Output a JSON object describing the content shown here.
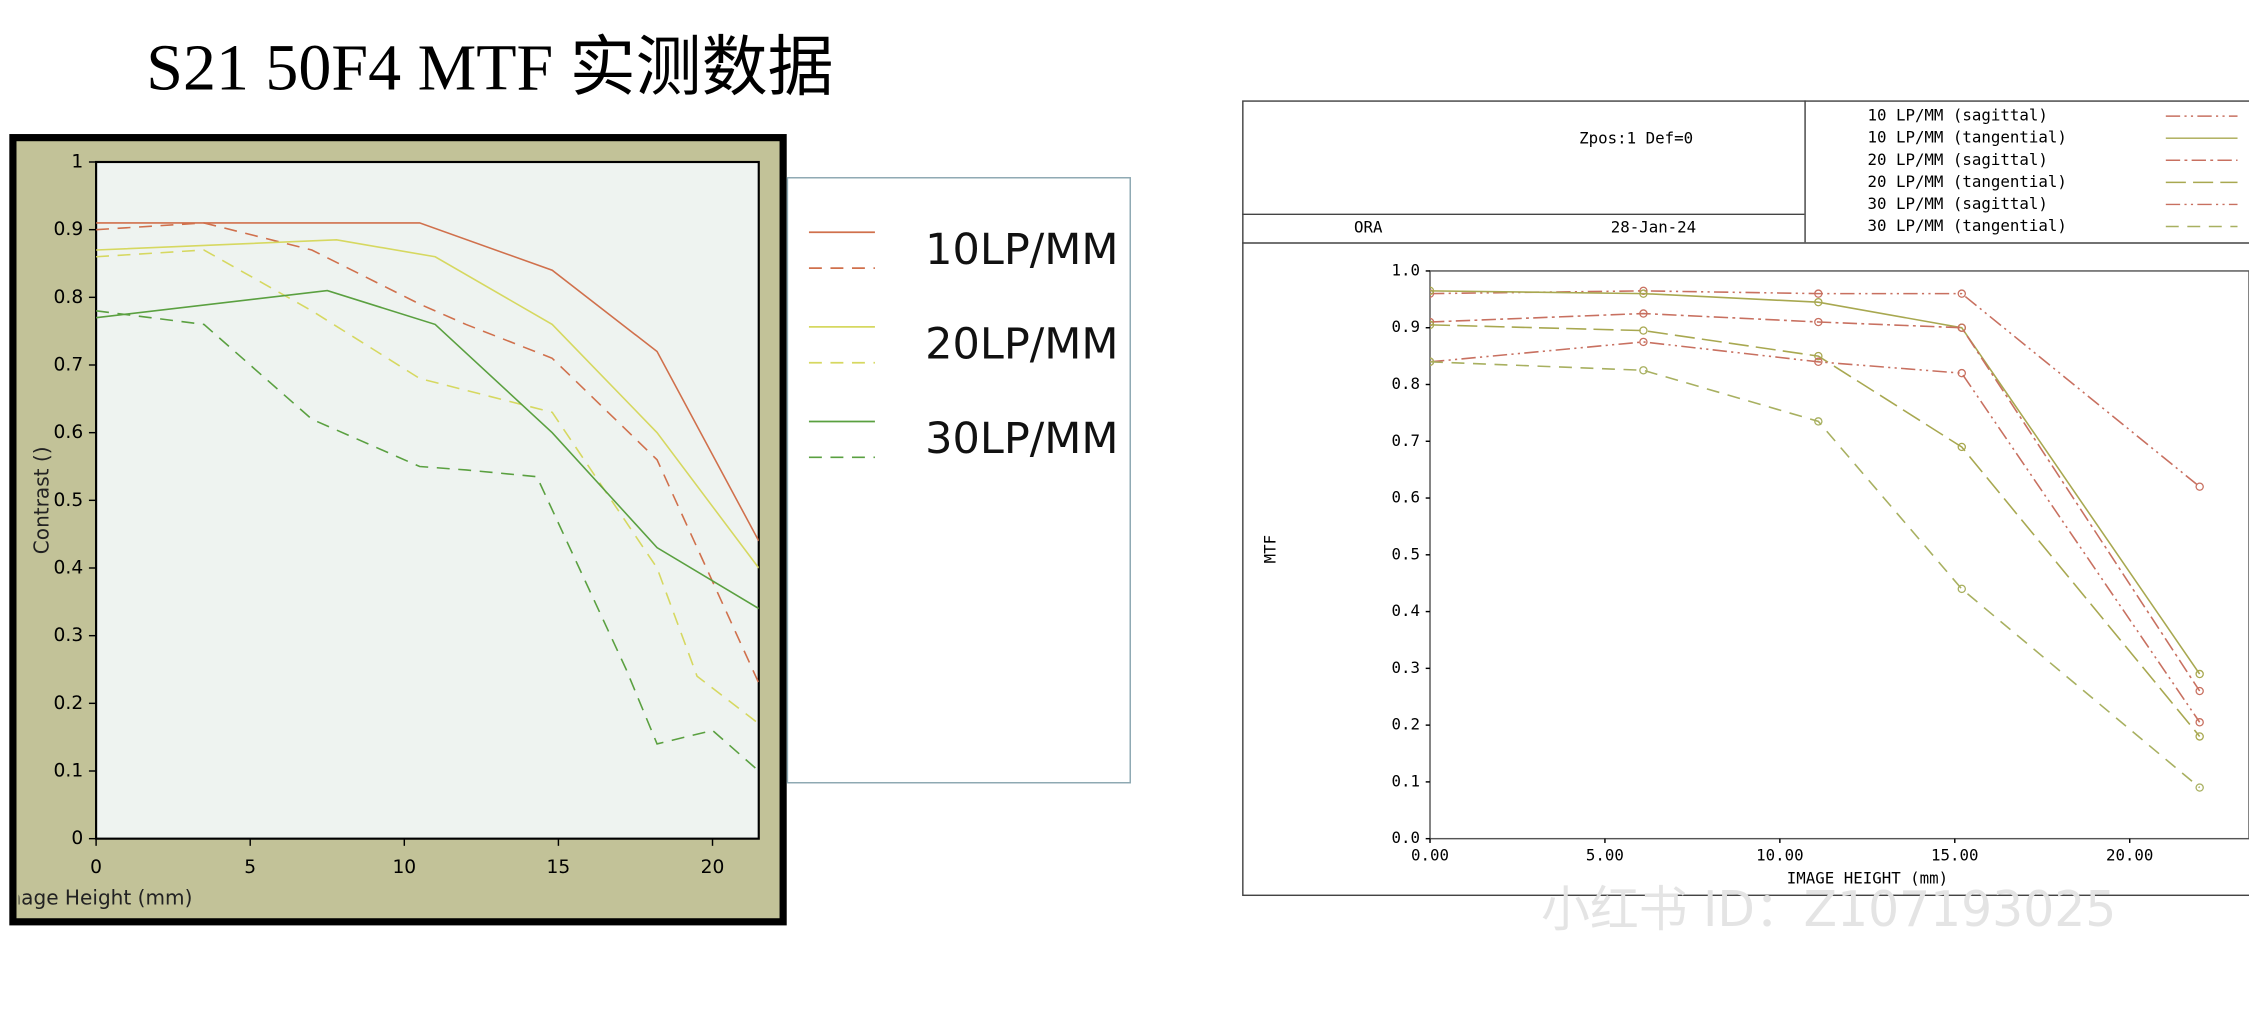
{
  "title": "S21 50F4  MTF  实测数据",
  "watermark": "小红书 ID：Z107193025",
  "chart_data": [
    {
      "type": "line",
      "xlabel": "Image Height (mm)",
      "ylabel": "Contrast ()",
      "xlim": [
        0,
        21.5
      ],
      "ylim": [
        0,
        1
      ],
      "xticks": [
        0,
        5,
        10,
        15,
        20
      ],
      "yticks": [
        0,
        0.1,
        0.2,
        0.3,
        0.4,
        0.5,
        0.6,
        0.7,
        0.8,
        0.9,
        1
      ],
      "legend": [
        "10LP/MM",
        "20LP/MM",
        "30LP/MM"
      ],
      "series": [
        {
          "color": "#d0704c",
          "dash": "solid",
          "x": [
            0,
            10.5,
            14.8,
            18.2,
            21.5
          ],
          "values": [
            0.91,
            0.91,
            0.84,
            0.72,
            0.44
          ]
        },
        {
          "color": "#d0704c",
          "dash": "dash",
          "x": [
            0,
            3.5,
            7,
            10.5,
            12,
            14.8,
            18.2,
            21.5
          ],
          "values": [
            0.9,
            0.91,
            0.87,
            0.79,
            0.76,
            0.71,
            0.56,
            0.23
          ]
        },
        {
          "color": "#d6d860",
          "dash": "solid",
          "x": [
            0,
            7.8,
            11,
            14.8,
            18.2,
            21.5
          ],
          "values": [
            0.87,
            0.885,
            0.86,
            0.76,
            0.6,
            0.4
          ]
        },
        {
          "color": "#d6d860",
          "dash": "dash",
          "x": [
            0,
            3.5,
            7,
            10.5,
            14.8,
            18.2,
            19.5,
            21.5
          ],
          "values": [
            0.86,
            0.87,
            0.78,
            0.68,
            0.63,
            0.4,
            0.24,
            0.17
          ]
        },
        {
          "color": "#5aa040",
          "dash": "solid",
          "x": [
            0,
            7.5,
            11,
            14.8,
            18.2,
            21.5
          ],
          "values": [
            0.77,
            0.81,
            0.76,
            0.6,
            0.43,
            0.34
          ]
        },
        {
          "color": "#5aa040",
          "dash": "dash",
          "x": [
            0,
            3.5,
            7,
            10.5,
            12,
            14.3,
            17.2,
            18.2,
            20,
            21.5
          ],
          "values": [
            0.78,
            0.76,
            0.62,
            0.55,
            0.545,
            0.535,
            0.25,
            0.14,
            0.16,
            0.1
          ]
        }
      ]
    },
    {
      "type": "line",
      "xlabel": "IMAGE HEIGHT (mm)",
      "ylabel": "MTF",
      "header": {
        "info": "Zpos:1 Def=0",
        "lens": "ORA",
        "date": "28-Jan-24"
      },
      "xlim": [
        0,
        23
      ],
      "ylim": [
        0,
        1
      ],
      "xticks": [
        {
          "value": 0,
          "label": "0.00"
        },
        {
          "value": 5,
          "label": "5.00"
        },
        {
          "value": 10,
          "label": "10.00"
        },
        {
          "value": 15,
          "label": "15.00"
        },
        {
          "value": 20,
          "label": "20.00"
        }
      ],
      "yticks": [
        {
          "value": 0,
          "label": "0.0"
        },
        {
          "value": 0.1,
          "label": "0.1"
        },
        {
          "value": 0.2,
          "label": "0.2"
        },
        {
          "value": 0.3,
          "label": "0.3"
        },
        {
          "value": 0.4,
          "label": "0.4"
        },
        {
          "value": 0.5,
          "label": "0.5"
        },
        {
          "value": 0.6,
          "label": "0.6"
        },
        {
          "value": 0.7,
          "label": "0.7"
        },
        {
          "value": 0.8,
          "label": "0.8"
        },
        {
          "value": 0.9,
          "label": "0.9"
        },
        {
          "value": 1,
          "label": "1.0"
        }
      ],
      "series": [
        {
          "name": "10 LP/MM (sagittal)",
          "color": "#c87060",
          "dash": "dashdotdot",
          "x": [
            0,
            6.1,
            11.1,
            15.2,
            22
          ],
          "values": [
            0.96,
            0.965,
            0.96,
            0.96,
            0.62
          ]
        },
        {
          "name": "10 LP/MM (tangential)",
          "color": "#a8a850",
          "dash": "solid",
          "x": [
            0,
            6.1,
            11.1,
            15.2,
            22
          ],
          "values": [
            0.965,
            0.96,
            0.945,
            0.9,
            0.29
          ]
        },
        {
          "name": "20 LP/MM (sagittal)",
          "color": "#c87060",
          "dash": "dashdot",
          "x": [
            0,
            6.1,
            11.1,
            15.2,
            22
          ],
          "values": [
            0.91,
            0.925,
            0.91,
            0.9,
            0.26
          ]
        },
        {
          "name": "20 LP/MM (tangential)",
          "color": "#a8a850",
          "dash": "longdash",
          "x": [
            0,
            6.1,
            11.1,
            15.2,
            22
          ],
          "values": [
            0.905,
            0.895,
            0.85,
            0.69,
            0.18
          ]
        },
        {
          "name": "30 LP/MM (sagittal)",
          "color": "#c87060",
          "dash": "dashdotdot",
          "x": [
            0,
            6.1,
            11.1,
            15.2,
            22
          ],
          "values": [
            0.84,
            0.875,
            0.84,
            0.82,
            0.205
          ]
        },
        {
          "name": "30 LP/MM (tangential)",
          "color": "#a8b060",
          "dash": "dash",
          "x": [
            0,
            6.1,
            11.1,
            15.2,
            22
          ],
          "values": [
            0.84,
            0.825,
            0.735,
            0.44,
            0.09
          ]
        }
      ]
    }
  ]
}
